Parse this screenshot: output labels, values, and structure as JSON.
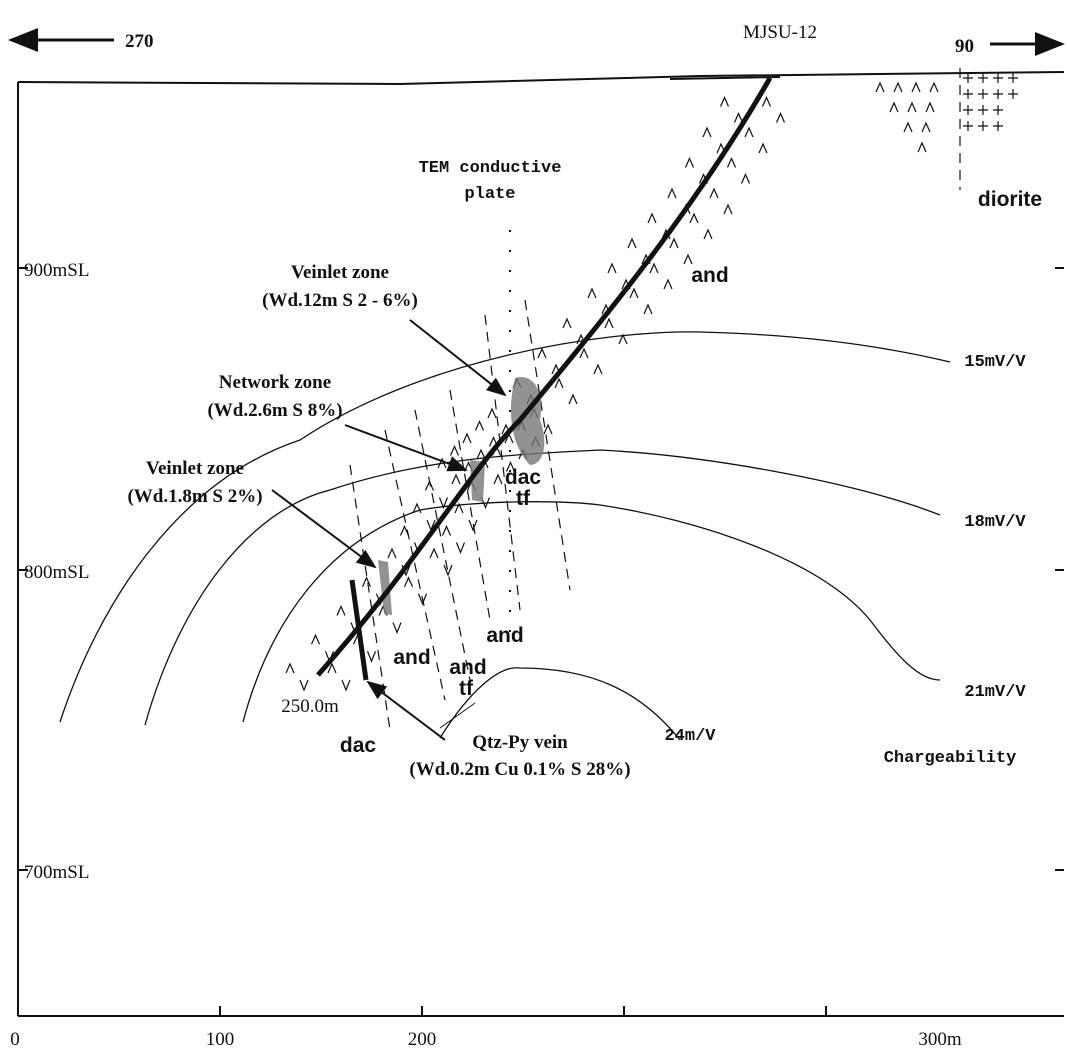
{
  "header": {
    "west": "270",
    "title": "MJSU-12",
    "east": "90"
  },
  "elevation_labels": [
    "900mSL",
    "800mSL",
    "700mSL"
  ],
  "distance_labels": [
    "0",
    "100",
    "200",
    "300m"
  ],
  "tem_plate": [
    "TEM conductive",
    "plate"
  ],
  "zones": {
    "veinlet_upper": [
      "Veinlet zone",
      "(Wd.12m S 2 - 6%)"
    ],
    "network": [
      "Network zone",
      "(Wd.2.6m S 8%)"
    ],
    "veinlet_lower": [
      "Veinlet zone",
      "(Wd.1.8m S 2%)"
    ],
    "qtz_py_vein": [
      "Qtz-Py vein",
      "(Wd.0.2m Cu 0.1% S 28%)"
    ]
  },
  "rocks": {
    "diorite": "diorite",
    "and_upper": "and",
    "dac_tf": [
      "dac",
      "tf"
    ],
    "and_mid": "and",
    "and_left": "and",
    "and_tf": [
      "and",
      "tf"
    ],
    "dac_lower": "dac"
  },
  "depth_label": "250.0m",
  "contours": [
    "15mV/V",
    "18mV/V",
    "21mV/V",
    "24m/V"
  ],
  "legend": "Chargeability"
}
